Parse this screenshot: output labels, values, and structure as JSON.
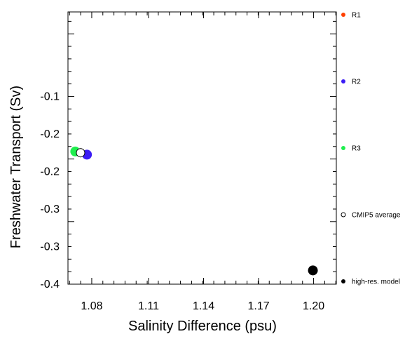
{
  "chart_data": {
    "type": "scatter",
    "title": "",
    "xlabel": "Salinity Difference (psu)",
    "ylabel": "Freshwater Transport (Sv)",
    "x_ticks": [
      {
        "value": 1.076,
        "label": "1.08"
      },
      {
        "value": 1.108,
        "label": "1.11"
      },
      {
        "value": 1.139,
        "label": "1.14"
      },
      {
        "value": 1.17,
        "label": "1.17"
      },
      {
        "value": 1.201,
        "label": "1.20"
      }
    ],
    "y_ticks": [
      {
        "value": -0.1,
        "label": "-0.1"
      },
      {
        "value": -0.2,
        "label": "-0.2"
      },
      {
        "value": -0.3,
        "label": "-0.3"
      },
      {
        "value": -0.4,
        "label": "-0.4"
      }
    ],
    "y_tick_labels_printed": [
      "-0.1",
      "-0.2",
      "-0.2",
      "-0.3",
      "-0.3",
      "-0.4"
    ],
    "xlim": [
      1.0626,
      1.2138
    ],
    "ylim": [
      -0.4,
      0.035
    ],
    "grid": false,
    "legend_position": "right",
    "series": [
      {
        "name": "R1",
        "color": "#ff4000",
        "marker": "filled-circle",
        "points": []
      },
      {
        "name": "R2",
        "color": "#3b1cf5",
        "marker": "filled-circle",
        "points": [
          {
            "x": 1.0733,
            "y": -0.193
          }
        ]
      },
      {
        "name": "R3",
        "color": "#1fef4e",
        "marker": "filled-circle",
        "points": [
          {
            "x": 1.0667,
            "y": -0.188
          }
        ]
      },
      {
        "name": "CMIP5 average",
        "color": "#000000",
        "marker": "open-circle",
        "points": [
          {
            "x": 1.0697,
            "y": -0.19
          }
        ]
      },
      {
        "name": "high-res. model",
        "color": "#000000",
        "marker": "filled-circle",
        "points": [
          {
            "x": 1.2006,
            "y": -0.378
          }
        ]
      }
    ]
  }
}
